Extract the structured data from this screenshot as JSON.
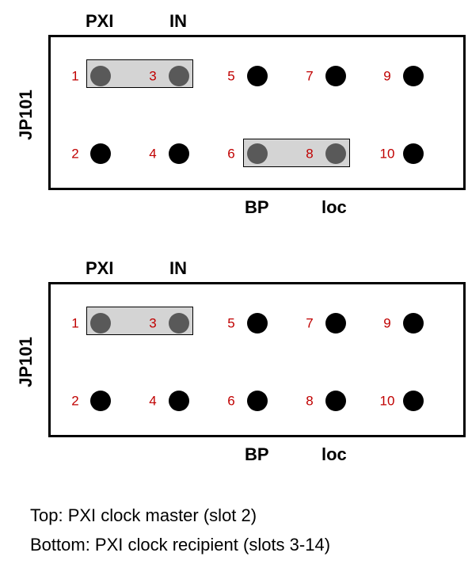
{
  "colors": {
    "pin": "#000000",
    "covered_pin": "#595959",
    "jumper": "#d4d4d4",
    "pin_number": "#c00000"
  },
  "diagrams": [
    {
      "header_labels": [
        "PXI",
        "IN"
      ],
      "footer_labels": [
        "BP",
        "loc"
      ],
      "jumper_label": "JP101",
      "pins": [
        "1",
        "2",
        "3",
        "4",
        "5",
        "6",
        "7",
        "8",
        "9",
        "10"
      ],
      "jumpers": [
        [
          "1",
          "3"
        ],
        [
          "6",
          "8"
        ]
      ]
    },
    {
      "header_labels": [
        "PXI",
        "IN"
      ],
      "footer_labels": [
        "BP",
        "loc"
      ],
      "jumper_label": "JP101",
      "pins": [
        "1",
        "2",
        "3",
        "4",
        "5",
        "6",
        "7",
        "8",
        "9",
        "10"
      ],
      "jumpers": [
        [
          "1",
          "3"
        ]
      ]
    }
  ],
  "caption": {
    "line1": "Top: PXI clock master (slot 2)",
    "line2": "Bottom: PXI clock recipient (slots 3-14)"
  }
}
